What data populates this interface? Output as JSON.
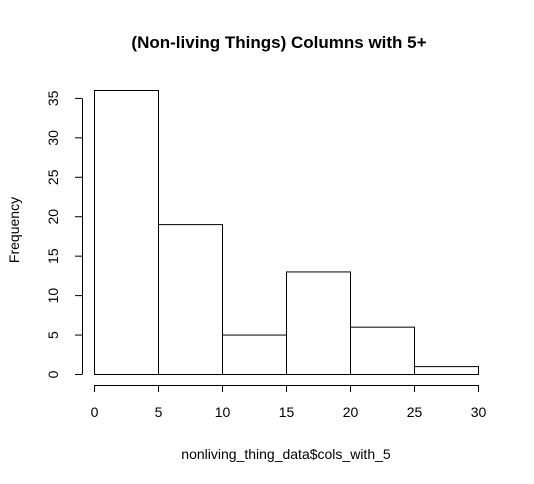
{
  "chart_data": {
    "type": "bar",
    "title": "(Non-living Things) Columns with 5+",
    "xlabel": "nonliving_thing_data$cols_with_5",
    "ylabel": "Frequency",
    "bins": [
      {
        "start": 0,
        "end": 5,
        "count": 36
      },
      {
        "start": 5,
        "end": 10,
        "count": 19
      },
      {
        "start": 10,
        "end": 15,
        "count": 5
      },
      {
        "start": 15,
        "end": 20,
        "count": 13
      },
      {
        "start": 20,
        "end": 25,
        "count": 6
      },
      {
        "start": 25,
        "end": 30,
        "count": 1
      }
    ],
    "xlim": [
      0,
      30
    ],
    "ylim": [
      0,
      36
    ],
    "x_ticks": [
      "0",
      "5",
      "10",
      "15",
      "20",
      "25",
      "30"
    ],
    "y_ticks": [
      "0",
      "5",
      "10",
      "15",
      "20",
      "25",
      "30",
      "35"
    ],
    "grid": false,
    "bar_color": "#ffffff",
    "edge_color": "#000000"
  }
}
